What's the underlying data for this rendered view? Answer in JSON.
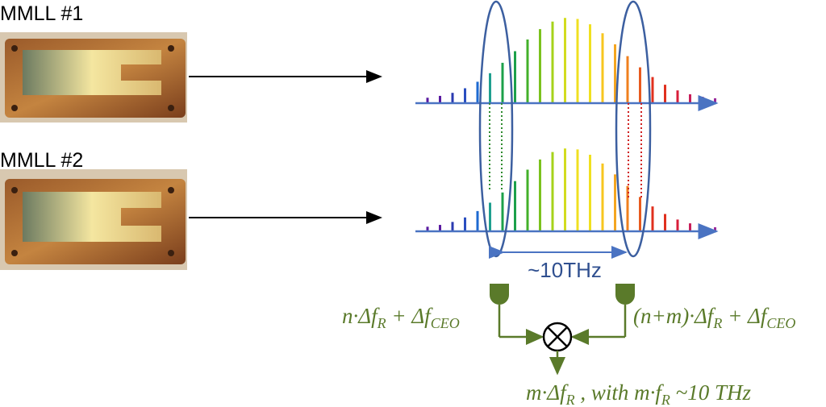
{
  "lasers": [
    {
      "label": "MMLL #1"
    },
    {
      "label": "MMLL #2"
    }
  ],
  "spacing_label": "~10THz",
  "formulas": {
    "left_main": "n·Δf",
    "left_sub1": "R",
    "left_mid": " + Δf",
    "left_sub2": "CEO",
    "right_main": "(n+m)·Δf",
    "right_sub1": "R",
    "right_mid": " + Δf",
    "right_sub2": "CEO",
    "out_main": "m·Δf",
    "out_sub1": "R",
    "out_mid": " , with m·f",
    "out_sub2": "R",
    "out_end": " ~10 THz"
  },
  "colors": {
    "axis": "#4a73c2",
    "ellipse": "#3c5fa0",
    "olive": "#5a7a2a",
    "spacing_text": "#2f4f8f"
  }
}
